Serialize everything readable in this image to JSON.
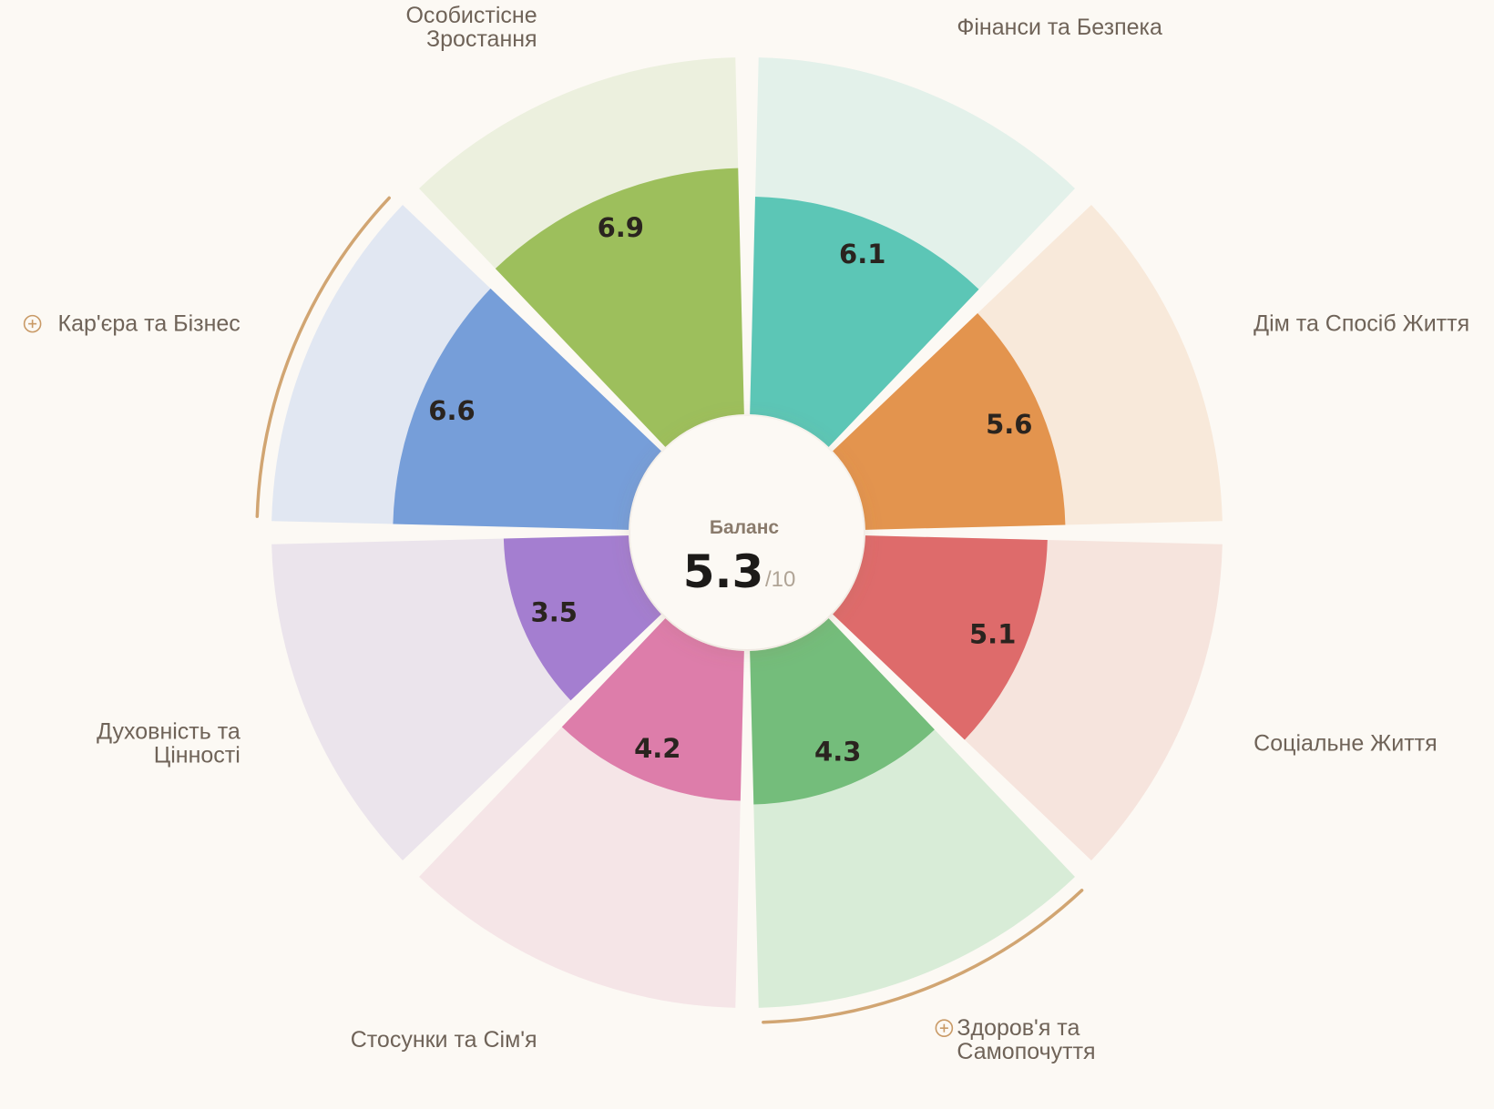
{
  "center": {
    "label": "Баланс",
    "value": "5.3",
    "max_label": "/10"
  },
  "colors": {
    "background": "#fcf9f4",
    "center_fill": "#fcf9f4",
    "highlight_arc": "#d1a572"
  },
  "chart_data": {
    "type": "polar-bar",
    "scale_max": 10,
    "overall_score": 5.3,
    "segments": [
      {
        "label": [
          "Фінанси та Безпека"
        ],
        "value": 6.1,
        "value_label": "6.1",
        "color": "#5cc6b6",
        "track_color": "#e3f1ea",
        "highlighted": false
      },
      {
        "label": [
          "Дім та Спосіб Життя"
        ],
        "value": 5.6,
        "value_label": "5.6",
        "color": "#e3944e",
        "track_color": "#f8e9da",
        "highlighted": false
      },
      {
        "label": [
          "Соціальне Життя"
        ],
        "value": 5.1,
        "value_label": "5.1",
        "color": "#de6b6b",
        "track_color": "#f6e4dd",
        "highlighted": false
      },
      {
        "label": [
          "Здоров'я та",
          "Самопочуття"
        ],
        "value": 4.3,
        "value_label": "4.3",
        "color": "#74bd7b",
        "track_color": "#d8ecd7",
        "highlighted": true
      },
      {
        "label": [
          "Стосунки та Сім'я"
        ],
        "value": 4.2,
        "value_label": "4.2",
        "color": "#dd7daa",
        "track_color": "#f5e5e7",
        "highlighted": false
      },
      {
        "label": [
          "Духовність та",
          "Цінності"
        ],
        "value": 3.5,
        "value_label": "3.5",
        "color": "#a47ed0",
        "track_color": "#ebe4ec",
        "highlighted": false
      },
      {
        "label": [
          "Кар'єра та Бізнес"
        ],
        "value": 6.6,
        "value_label": "6.6",
        "color": "#769ed9",
        "track_color": "#e1e7f2",
        "highlighted": true
      },
      {
        "label": [
          "Особистісне",
          "Зростання"
        ],
        "value": 6.9,
        "value_label": "6.9",
        "color": "#9dbf5c",
        "track_color": "#ecf0de",
        "highlighted": false
      }
    ]
  }
}
